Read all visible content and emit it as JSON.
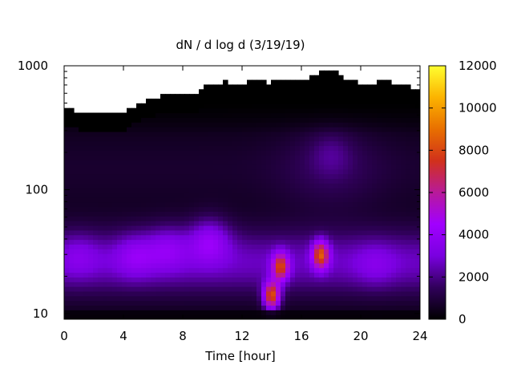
{
  "chart_data": {
    "type": "heatmap",
    "title": "dN / d log d (3/19/19)",
    "xlabel": "Time [hour]",
    "ylabel": "",
    "xlim": [
      0,
      24
    ],
    "ylim": [
      9,
      1000
    ],
    "y_scale": "log",
    "x_ticks": [
      "0",
      "4",
      "8",
      "12",
      "16",
      "20",
      "24"
    ],
    "y_ticks": [
      "10",
      "100",
      "1000"
    ],
    "colorbar": {
      "range": [
        0,
        12000
      ],
      "ticks": [
        "0",
        "2000",
        "4000",
        "6000",
        "8000",
        "10000",
        "12000"
      ],
      "palette": "black-purple-red-orange-yellow",
      "stops": [
        "#000000",
        "#30005a",
        "#7a00e0",
        "#a100ff",
        "#b81a9a",
        "#d1311b",
        "#e86f00",
        "#fcb300",
        "#ffff30"
      ]
    },
    "background_color": "#ffffff",
    "upper_missing_region_color": "#000000",
    "upper_size_limit_profile": {
      "time": [
        0,
        1.2,
        4,
        4.5,
        5,
        6,
        7.5,
        9,
        9.6,
        11,
        11.5,
        13,
        13.7,
        15,
        15.5,
        16.5,
        17.5,
        18.5,
        19,
        20.5,
        21.5,
        22.5,
        24
      ],
      "diameter_nm": [
        460,
        420,
        420,
        460,
        490,
        550,
        600,
        600,
        680,
        760,
        680,
        790,
        720,
        790,
        730,
        780,
        900,
        900,
        760,
        710,
        760,
        710,
        650
      ]
    },
    "peaks": [
      {
        "time": 14.0,
        "diameter_nm": 14,
        "value": 9500
      },
      {
        "time": 14.6,
        "diameter_nm": 24,
        "value": 8000
      },
      {
        "time": 17.3,
        "diameter_nm": 30,
        "value": 8500
      },
      {
        "time": 9.8,
        "diameter_nm": 40,
        "value": 4700
      },
      {
        "time": 7.0,
        "diameter_nm": 35,
        "value": 4000
      },
      {
        "time": 4.8,
        "diameter_nm": 30,
        "value": 3900
      },
      {
        "time": 1.0,
        "diameter_nm": 30,
        "value": 3400
      },
      {
        "time": 18.0,
        "diameter_nm": 200,
        "value": 3200
      },
      {
        "time": 21.0,
        "diameter_nm": 25,
        "value": 3300
      }
    ]
  }
}
